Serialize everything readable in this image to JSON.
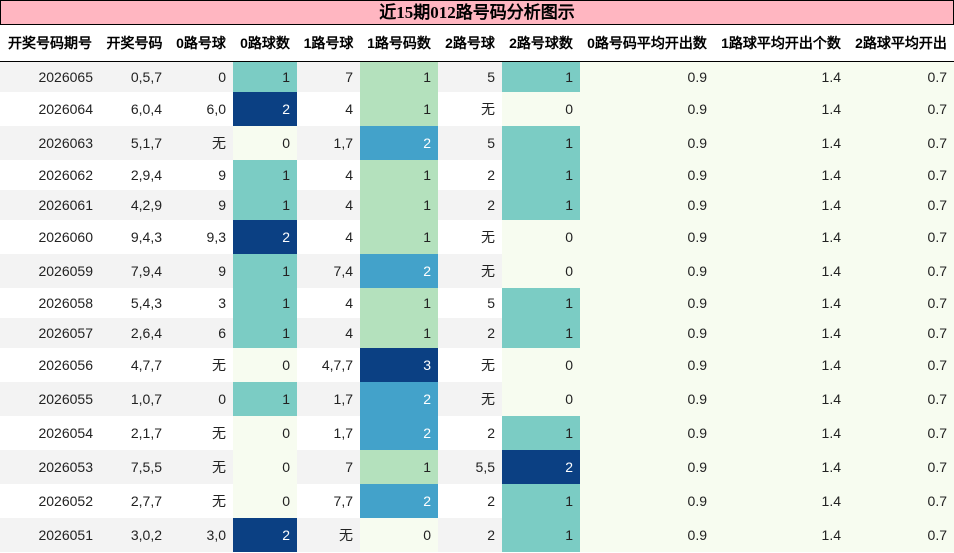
{
  "title": "近15期012路号码分析图示",
  "headers": [
    "开奖号码期号",
    "开奖号码",
    "0路号球",
    "0路球数",
    "1路号球",
    "1路号码数",
    "2路号球",
    "2路号球数",
    "0路号码平均开出数",
    "1路球平均开出个数",
    "2路球平均开出"
  ],
  "colors": {
    "zero": "#f7fcf0",
    "teal": "#7bccc4",
    "lightgreen": "#b4e1bd",
    "blue": "#43a2ca",
    "dark": "#0b4083",
    "header_bg": "#ffb6c1"
  },
  "rows": [
    [
      "2026065",
      "0,5,7",
      "0",
      "1",
      "7",
      "1",
      "5",
      "1",
      "0.9",
      "1.4",
      "0.7"
    ],
    [
      "2026064",
      "6,0,4",
      "6,0",
      "2",
      "4",
      "1",
      "无",
      "0",
      "0.9",
      "1.4",
      "0.7"
    ],
    [
      "2026063",
      "5,1,7",
      "无",
      "0",
      "1,7",
      "2",
      "5",
      "1",
      "0.9",
      "1.4",
      "0.7"
    ],
    [
      "2026062",
      "2,9,4",
      "9",
      "1",
      "4",
      "1",
      "2",
      "1",
      "0.9",
      "1.4",
      "0.7"
    ],
    [
      "2026061",
      "4,2,9",
      "9",
      "1",
      "4",
      "1",
      "2",
      "1",
      "0.9",
      "1.4",
      "0.7"
    ],
    [
      "2026060",
      "9,4,3",
      "9,3",
      "2",
      "4",
      "1",
      "无",
      "0",
      "0.9",
      "1.4",
      "0.7"
    ],
    [
      "2026059",
      "7,9,4",
      "9",
      "1",
      "7,4",
      "2",
      "无",
      "0",
      "0.9",
      "1.4",
      "0.7"
    ],
    [
      "2026058",
      "5,4,3",
      "3",
      "1",
      "4",
      "1",
      "5",
      "1",
      "0.9",
      "1.4",
      "0.7"
    ],
    [
      "2026057",
      "2,6,4",
      "6",
      "1",
      "4",
      "1",
      "2",
      "1",
      "0.9",
      "1.4",
      "0.7"
    ],
    [
      "2026056",
      "4,7,7",
      "无",
      "0",
      "4,7,7",
      "3",
      "无",
      "0",
      "0.9",
      "1.4",
      "0.7"
    ],
    [
      "2026055",
      "1,0,7",
      "0",
      "1",
      "1,7",
      "2",
      "无",
      "0",
      "0.9",
      "1.4",
      "0.7"
    ],
    [
      "2026054",
      "2,1,7",
      "无",
      "0",
      "1,7",
      "2",
      "2",
      "1",
      "0.9",
      "1.4",
      "0.7"
    ],
    [
      "2026053",
      "7,5,5",
      "无",
      "0",
      "7",
      "1",
      "5,5",
      "2",
      "0.9",
      "1.4",
      "0.7"
    ],
    [
      "2026052",
      "2,7,7",
      "无",
      "0",
      "7,7",
      "2",
      "2",
      "1",
      "0.9",
      "1.4",
      "0.7"
    ],
    [
      "2026051",
      "3,0,2",
      "3,0",
      "2",
      "无",
      "0",
      "2",
      "1",
      "0.9",
      "1.4",
      "0.7"
    ]
  ]
}
